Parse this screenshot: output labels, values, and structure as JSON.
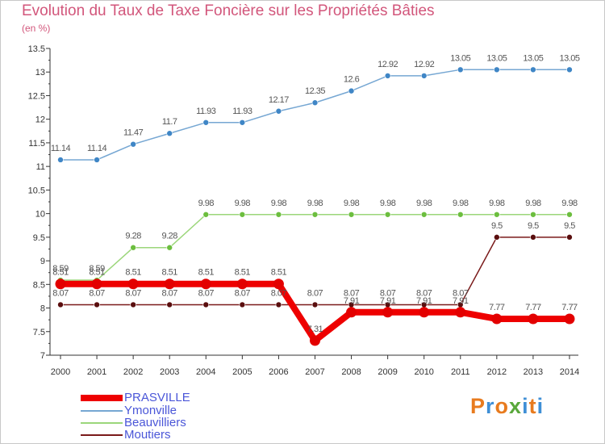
{
  "title": "Evolution du Taux de Taxe Foncière sur les Propriétés Bâties",
  "unit_label": "(en %)",
  "logo_text": "Proxiti",
  "logo_colors": [
    "#e87b1e",
    "#3f8fd6",
    "#e87b1e",
    "#5aa83c",
    "#3f8fd6",
    "#e87b1e",
    "#3f8fd6"
  ],
  "chart_data": {
    "type": "line",
    "title": "Evolution du Taux de Taxe Foncière sur les Propriétés Bâties",
    "ylabel": "(en %)",
    "xlabel": "",
    "x": [
      "2000",
      "2001",
      "2002",
      "2003",
      "2004",
      "2005",
      "2006",
      "2007",
      "2008",
      "2009",
      "2010",
      "2011",
      "2012",
      "2013",
      "2014"
    ],
    "ylim": [
      7,
      13.5
    ],
    "yticks": [
      "7",
      "7.5",
      "8",
      "8.5",
      "9",
      "9.5",
      "10",
      "10.5",
      "11",
      "11.5",
      "12",
      "12.5",
      "13",
      "13.5"
    ],
    "legend_position": "bottom-left",
    "series": [
      {
        "name": "Moutiers",
        "color": "#7a1a1a",
        "marker": "#5a0e0e",
        "width": 1.5,
        "values": [
          8.07,
          8.07,
          8.07,
          8.07,
          8.07,
          8.07,
          8.07,
          8.07,
          8.07,
          8.07,
          8.07,
          8.07,
          9.5,
          9.5,
          9.5
        ]
      },
      {
        "name": "Beauvilliers",
        "color": "#9bd67a",
        "marker": "#6cbe3e",
        "width": 1.5,
        "values": [
          8.59,
          8.59,
          9.28,
          9.28,
          9.98,
          9.98,
          9.98,
          9.98,
          9.98,
          9.98,
          9.98,
          9.98,
          9.98,
          9.98,
          9.98
        ]
      },
      {
        "name": "Ymonville",
        "color": "#76a7d3",
        "marker": "#3f86c6",
        "width": 1.5,
        "values": [
          11.14,
          11.14,
          11.47,
          11.7,
          11.93,
          11.93,
          12.17,
          12.35,
          12.6,
          12.92,
          12.92,
          13.05,
          13.05,
          13.05,
          13.05
        ]
      },
      {
        "name": "PRASVILLE",
        "color": "#ee0000",
        "marker": "#e30000",
        "width": 8,
        "values": [
          8.51,
          8.51,
          8.51,
          8.51,
          8.51,
          8.51,
          8.51,
          7.31,
          7.91,
          7.91,
          7.91,
          7.91,
          7.77,
          7.77,
          7.77
        ]
      }
    ],
    "legend": [
      "PRASVILLE",
      "Ymonville",
      "Beauvilliers",
      "Moutiers"
    ]
  }
}
